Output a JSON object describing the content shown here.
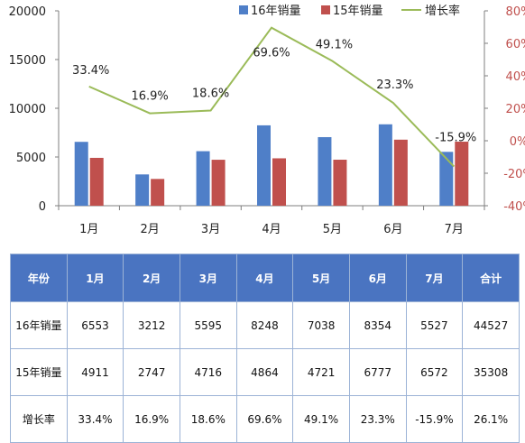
{
  "chart_data": {
    "type": "bar+line",
    "categories": [
      "1月",
      "2月",
      "3月",
      "4月",
      "5月",
      "6月",
      "7月"
    ],
    "series": [
      {
        "name": "16年销量",
        "type": "bar",
        "axis": "left",
        "color": "#4f7fc8",
        "values": [
          6553,
          3212,
          5595,
          8248,
          7038,
          8354,
          5527
        ]
      },
      {
        "name": "15年销量",
        "type": "bar",
        "axis": "left",
        "color": "#c0504d",
        "values": [
          4911,
          2747,
          4716,
          4864,
          4721,
          6777,
          6572
        ]
      },
      {
        "name": "增长率",
        "type": "line",
        "axis": "right",
        "color": "#9bbb59",
        "values": [
          33.4,
          16.9,
          18.6,
          69.6,
          49.1,
          23.3,
          -15.9
        ],
        "labels": [
          "33.4%",
          "16.9%",
          "18.6%",
          "69.6%",
          "49.1%",
          "23.3%",
          "-15.9%"
        ]
      }
    ],
    "left_axis": {
      "min": 0,
      "max": 20000,
      "ticks": [
        0,
        5000,
        10000,
        15000,
        20000
      ],
      "tick_labels": [
        "0",
        "5000",
        "10000",
        "15000",
        "20000"
      ]
    },
    "right_axis": {
      "min": -40,
      "max": 80,
      "ticks": [
        -40,
        -20,
        0,
        20,
        40,
        60,
        80
      ],
      "tick_labels": [
        "-40%",
        "-20%",
        "0%",
        "20%",
        "40%",
        "60%",
        "80%"
      ],
      "color": "#c0504d"
    },
    "legend_position": "top-right",
    "grid": false
  },
  "table": {
    "header": [
      "年份",
      "1月",
      "2月",
      "3月",
      "4月",
      "5月",
      "6月",
      "7月",
      "合计"
    ],
    "rows": [
      [
        "16年销量",
        "6553",
        "3212",
        "5595",
        "8248",
        "7038",
        "8354",
        "5527",
        "44527"
      ],
      [
        "15年销量",
        "4911",
        "2747",
        "4716",
        "4864",
        "4721",
        "6777",
        "6572",
        "35308"
      ],
      [
        "增长率",
        "33.4%",
        "16.9%",
        "18.6%",
        "69.6%",
        "49.1%",
        "23.3%",
        "-15.9%",
        "26.1%"
      ]
    ],
    "header_color": "#4a74c1"
  }
}
